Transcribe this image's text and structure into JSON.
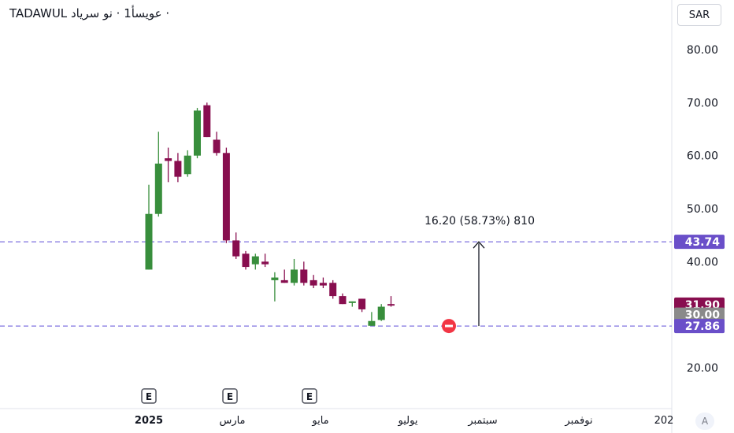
{
  "header": {
    "exchange": "TADAWUL",
    "title": "عويسأ1 · نو سرياد ·"
  },
  "currency_button": "SAR",
  "auto_button": "A",
  "measure_label": "16.20 (58.73%) 810",
  "colors": {
    "up": "#388e3c",
    "down": "#880e4f",
    "dashed": "#5d4dd6",
    "badge_dark": "#880e4f",
    "badge_purple": "#6a4fc9"
  },
  "chart_data": {
    "type": "candlestick",
    "y_ticks": [
      "80.00",
      "70.00",
      "60.00",
      "50.00",
      "40.00",
      "30.00",
      "20.00"
    ],
    "ylim": [
      14.5,
      85
    ],
    "x_ticks": [
      "2025",
      "مارس",
      "مايو",
      "يوليو",
      "سبتمبر",
      "نوفمبر",
      "202"
    ],
    "price_badges": [
      {
        "label": "43.74",
        "value": 43.74,
        "color": "#6a4fc9"
      },
      {
        "label": "31.90",
        "value": 31.9,
        "color": "#880e4f"
      },
      {
        "label": "30.00",
        "value": 30.0,
        "color": "#8a8a8a"
      },
      {
        "label": "27.86",
        "value": 27.86,
        "color": "#6a4fc9"
      }
    ],
    "dashed_levels": [
      43.74,
      27.86
    ],
    "events": [
      "E",
      "E",
      "E"
    ],
    "candles": [
      {
        "o": 38.5,
        "h": 54.5,
        "l": 38.5,
        "c": 49.0
      },
      {
        "o": 49.0,
        "h": 64.5,
        "l": 48.5,
        "c": 58.5
      },
      {
        "o": 59.5,
        "h": 61.5,
        "l": 55.0,
        "c": 59.0
      },
      {
        "o": 59.0,
        "h": 60.5,
        "l": 55.0,
        "c": 56.0
      },
      {
        "o": 56.5,
        "h": 61.0,
        "l": 56.0,
        "c": 60.0
      },
      {
        "o": 60.0,
        "h": 69.0,
        "l": 59.5,
        "c": 68.5
      },
      {
        "o": 69.5,
        "h": 70.0,
        "l": 63.5,
        "c": 63.5
      },
      {
        "o": 63.0,
        "h": 64.5,
        "l": 60.0,
        "c": 60.5
      },
      {
        "o": 60.5,
        "h": 61.5,
        "l": 43.5,
        "c": 44.0
      },
      {
        "o": 44.0,
        "h": 45.5,
        "l": 40.5,
        "c": 41.0
      },
      {
        "o": 41.5,
        "h": 42.0,
        "l": 38.5,
        "c": 39.0
      },
      {
        "o": 39.5,
        "h": 41.5,
        "l": 38.5,
        "c": 41.0
      },
      {
        "o": 40.0,
        "h": 41.5,
        "l": 39.0,
        "c": 39.5
      },
      {
        "o": 36.5,
        "h": 38.0,
        "l": 32.5,
        "c": 37.0
      },
      {
        "o": 36.5,
        "h": 38.5,
        "l": 36.0,
        "c": 36.0
      },
      {
        "o": 36.0,
        "h": 40.5,
        "l": 35.5,
        "c": 38.5
      },
      {
        "o": 38.5,
        "h": 40.0,
        "l": 35.5,
        "c": 36.0
      },
      {
        "o": 36.5,
        "h": 37.5,
        "l": 35.0,
        "c": 35.5
      },
      {
        "o": 36.0,
        "h": 37.0,
        "l": 35.0,
        "c": 35.5
      },
      {
        "o": 36.0,
        "h": 36.5,
        "l": 33.0,
        "c": 33.5
      },
      {
        "o": 33.5,
        "h": 34.0,
        "l": 32.0,
        "c": 32.0
      },
      {
        "o": 32.5,
        "h": 32.5,
        "l": 31.5,
        "c": 32.5
      },
      {
        "o": 33.0,
        "h": 33.0,
        "l": 30.5,
        "c": 31.0
      },
      {
        "o": 27.9,
        "h": 30.5,
        "l": 27.9,
        "c": 28.8
      },
      {
        "o": 29.0,
        "h": 32.0,
        "l": 28.8,
        "c": 31.5
      },
      {
        "o": 32.0,
        "h": 33.5,
        "l": 31.5,
        "c": 31.9
      }
    ]
  }
}
